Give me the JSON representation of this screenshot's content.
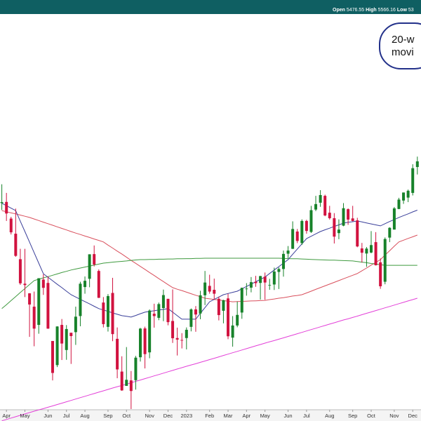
{
  "chart_data": {
    "type": "candlestick",
    "header": [
      {
        "label": "Open",
        "value": "5476.55"
      },
      {
        "label": "High",
        "value": "5566.16"
      },
      {
        "label": "Low",
        "value": "53"
      }
    ],
    "annotation": [
      "20-w",
      "movi"
    ],
    "up_color": "#17822a",
    "down_color": "#d1123f",
    "ylim": [
      3430,
      5505
    ],
    "categories": [
      null,
      "Apr",
      null,
      null,
      null,
      "May",
      null,
      null,
      null,
      null,
      "Jun",
      null,
      null,
      null,
      "Jul",
      null,
      null,
      null,
      "Aug",
      null,
      null,
      null,
      null,
      "Sep",
      null,
      null,
      null,
      "Oct",
      null,
      null,
      null,
      null,
      "Nov",
      null,
      null,
      null,
      "Dec",
      null,
      null,
      null,
      "2023",
      null,
      null,
      null,
      null,
      "Feb",
      null,
      null,
      null,
      "Mar",
      null,
      null,
      null,
      "Apr",
      null,
      null,
      null,
      "May",
      null,
      null,
      null,
      null,
      "Jun",
      null,
      null,
      null,
      "Jul",
      null,
      null,
      null,
      null,
      "Aug",
      null,
      null,
      null,
      null,
      "Sep",
      null,
      null,
      null,
      "Oct",
      null,
      null,
      null,
      null,
      "Nov",
      null,
      null,
      null,
      "Dec",
      null
    ],
    "open": [
      4541,
      4547,
      4462,
      4385,
      4255,
      4130,
      4081,
      4013,
      3920,
      4151,
      4134,
      3838,
      3715,
      3920,
      3792,
      3880,
      3883,
      3965,
      4113,
      4155,
      4281,
      4195,
      4034,
      3910,
      4083,
      3849,
      3682,
      3609,
      3637,
      3638,
      3755,
      3902,
      3780,
      3977,
      3956,
      4006,
      4053,
      3940,
      3853,
      3843,
      3853,
      3910,
      3999,
      3978,
      4071,
      4119,
      4099,
      4053,
      3992,
      4055,
      3855,
      3917,
      3983,
      4102,
      4110,
      4140,
      4134,
      4166,
      4124,
      4126,
      4190,
      4205,
      4283,
      4308,
      4396,
      4337,
      4450,
      4394,
      4508,
      4543,
      4578,
      4492,
      4464,
      4388,
      4426,
      4510,
      4463,
      4453,
      4310,
      4284,
      4289,
      4342,
      4239,
      4140,
      4365,
      4406,
      4511,
      4554,
      4569,
      4593,
      4725
    ],
    "high": [
      4637,
      4593,
      4471,
      4513,
      4308,
      4308,
      4082,
      4090,
      4158,
      4178,
      4168,
      3838,
      3913,
      3950,
      3919,
      3880,
      4013,
      4140,
      4167,
      4280,
      4325,
      4203,
      4062,
      4077,
      4160,
      3907,
      3760,
      3807,
      3685,
      3762,
      3905,
      3911,
      3999,
      4028,
      4034,
      4100,
      4053,
      4101,
      3906,
      3878,
      3907,
      4004,
      4016,
      4094,
      4195,
      4176,
      4156,
      4064,
      4048,
      4079,
      3965,
      4039,
      4110,
      4133,
      4164,
      4170,
      4170,
      4187,
      4155,
      4212,
      4213,
      4299,
      4322,
      4448,
      4409,
      4458,
      4456,
      4527,
      4578,
      4607,
      4584,
      4527,
      4490,
      4458,
      4541,
      4514,
      4527,
      4466,
      4338,
      4317,
      4398,
      4393,
      4259,
      4366,
      4418,
      4521,
      4568,
      4595,
      4610,
      4739,
      4778
    ],
    "low": [
      4506,
      4450,
      4381,
      4267,
      4124,
      4062,
      3859,
      3811,
      3875,
      4073,
      3900,
      3637,
      3705,
      3741,
      3742,
      3721,
      3818,
      3913,
      4079,
      4112,
      4218,
      4057,
      3907,
      3886,
      3837,
      3648,
      3584,
      3609,
      3491,
      3590,
      3733,
      3698,
      3750,
      3906,
      3944,
      3939,
      3918,
      3828,
      3764,
      3800,
      3795,
      3887,
      3885,
      3949,
      4021,
      4079,
      4048,
      3943,
      3928,
      3847,
      3809,
      3908,
      3951,
      4069,
      4086,
      4114,
      4049,
      4048,
      4099,
      4098,
      4103,
      4166,
      4260,
      4307,
      4337,
      4328,
      4385,
      4389,
      4500,
      4522,
      4474,
      4457,
      4335,
      4357,
      4423,
      4430,
      4448,
      4316,
      4238,
      4216,
      4285,
      4223,
      4104,
      4127,
      4342,
      4406,
      4510,
      4537,
      4546,
      4580,
      4687
    ],
    "close": [
      4546,
      4488,
      4392,
      4272,
      4132,
      4123,
      4024,
      3901,
      4158,
      4109,
      3901,
      3675,
      3912,
      3825,
      3899,
      3863,
      3962,
      4130,
      4145,
      4280,
      4228,
      4058,
      3924,
      4067,
      3873,
      3693,
      3586,
      3640,
      3583,
      3753,
      3901,
      3771,
      3993,
      3965,
      4026,
      4072,
      3934,
      3852,
      3845,
      3840,
      3895,
      3999,
      3973,
      4071,
      4136,
      4090,
      4079,
      3970,
      4046,
      3862,
      3917,
      3971,
      4109,
      4105,
      4138,
      4133,
      4169,
      4136,
      4124,
      4192,
      4205,
      4282,
      4299,
      4409,
      4348,
      4450,
      4399,
      4505,
      4536,
      4582,
      4478,
      4464,
      4370,
      4406,
      4515,
      4457,
      4450,
      4320,
      4288,
      4309,
      4327,
      4224,
      4117,
      4358,
      4415,
      4514,
      4559,
      4595,
      4604,
      4719,
      4754
    ],
    "series": [
      {
        "color": "#d94f5c",
        "values": [
          4503,
          4497,
          4491,
          4486,
          4480,
          4474,
          4468,
          4460,
          4452,
          4444,
          4436,
          4428,
          4420,
          4412,
          4404,
          4396,
          4388,
          4381,
          4373,
          4366,
          4358,
          4351,
          4343,
          4327,
          4312,
          4296,
          4281,
          4265,
          4249,
          4234,
          4218,
          4203,
          4187,
          4172,
          4156,
          4141,
          4125,
          4110,
          4102,
          4095,
          4087,
          4079,
          4071,
          4064,
          4056,
          4053,
          4050,
          4047,
          4044,
          4041,
          4038,
          4039,
          4040,
          4041,
          4042,
          4043,
          4044,
          4045,
          4049,
          4052,
          4056,
          4059,
          4063,
          4067,
          4070,
          4074,
          4083,
          4092,
          4101,
          4110,
          4119,
          4128,
          4137,
          4146,
          4155,
          4164,
          4173,
          4182,
          4196,
          4210,
          4225,
          4239,
          4253,
          4276,
          4298,
          4321,
          4343,
          4352,
          4361,
          4369,
          4378
        ]
      },
      {
        "color": "#3f9a3f",
        "values": [
          4003,
          4023,
          4044,
          4064,
          4085,
          4105,
          4126,
          4146,
          4153,
          4160,
          4166,
          4173,
          4180,
          4187,
          4193,
          4200,
          4205,
          4210,
          4215,
          4220,
          4225,
          4230,
          4235,
          4237,
          4240,
          4242,
          4244,
          4246,
          4249,
          4251,
          4253,
          4253,
          4254,
          4254,
          4255,
          4255,
          4256,
          4256,
          4257,
          4257,
          4258,
          4258,
          4259,
          4259,
          4260,
          4260,
          4260,
          4260,
          4260,
          4260,
          4260,
          4260,
          4260,
          4260,
          4260,
          4260,
          4260,
          4260,
          4260,
          4260,
          4260,
          4259,
          4258,
          4257,
          4257,
          4256,
          4255,
          4254,
          4253,
          4252,
          4251,
          4250,
          4250,
          4249,
          4248,
          4247,
          4246,
          4243,
          4240,
          4237,
          4233,
          4230,
          4227,
          4224,
          4224,
          4224,
          4224,
          4224,
          4224,
          4224,
          4224
        ]
      },
      {
        "color": "#3a3f9a",
        "values": [
          4540,
          4528,
          4515,
          4503,
          4449,
          4396,
          4342,
          4288,
          4235,
          4181,
          4163,
          4145,
          4127,
          4110,
          4092,
          4074,
          4062,
          4050,
          4039,
          4027,
          4015,
          4003,
          3996,
          3989,
          3981,
          3974,
          3967,
          3964,
          3960,
          3968,
          3977,
          3985,
          3989,
          3992,
          3996,
          3999,
          4003,
          3985,
          3967,
          3949,
          3949,
          3949,
          3949,
          3979,
          4008,
          4038,
          4050,
          4062,
          4074,
          4080,
          4086,
          4092,
          4104,
          4116,
          4128,
          4140,
          4152,
          4164,
          4182,
          4200,
          4217,
          4235,
          4253,
          4280,
          4307,
          4333,
          4360,
          4372,
          4384,
          4396,
          4405,
          4413,
          4422,
          4430,
          4439,
          4443,
          4446,
          4450,
          4445,
          4440,
          4435,
          4430,
          4425,
          4436,
          4447,
          4457,
          4468,
          4477,
          4486,
          4496,
          4505
        ]
      },
      {
        "color": "#e33fd8",
        "values": [
          3431,
          3438,
          3445,
          3452,
          3459,
          3466,
          3473,
          3480,
          3487,
          3493,
          3500,
          3507,
          3514,
          3521,
          3528,
          3535,
          3542,
          3549,
          3556,
          3563,
          3570,
          3577,
          3584,
          3591,
          3598,
          3605,
          3611,
          3618,
          3625,
          3632,
          3639,
          3646,
          3653,
          3660,
          3667,
          3674,
          3681,
          3688,
          3695,
          3702,
          3709,
          3716,
          3722,
          3729,
          3736,
          3743,
          3750,
          3757,
          3764,
          3771,
          3778,
          3785,
          3792,
          3799,
          3806,
          3813,
          3820,
          3827,
          3834,
          3840,
          3847,
          3854,
          3861,
          3868,
          3875,
          3882,
          3889,
          3896,
          3903,
          3910,
          3917,
          3924,
          3931,
          3938,
          3945,
          3951,
          3958,
          3965,
          3972,
          3979,
          3986,
          3993,
          4000,
          4007,
          4014,
          4021,
          4028,
          4035,
          4042,
          4049,
          4056
        ]
      }
    ]
  }
}
